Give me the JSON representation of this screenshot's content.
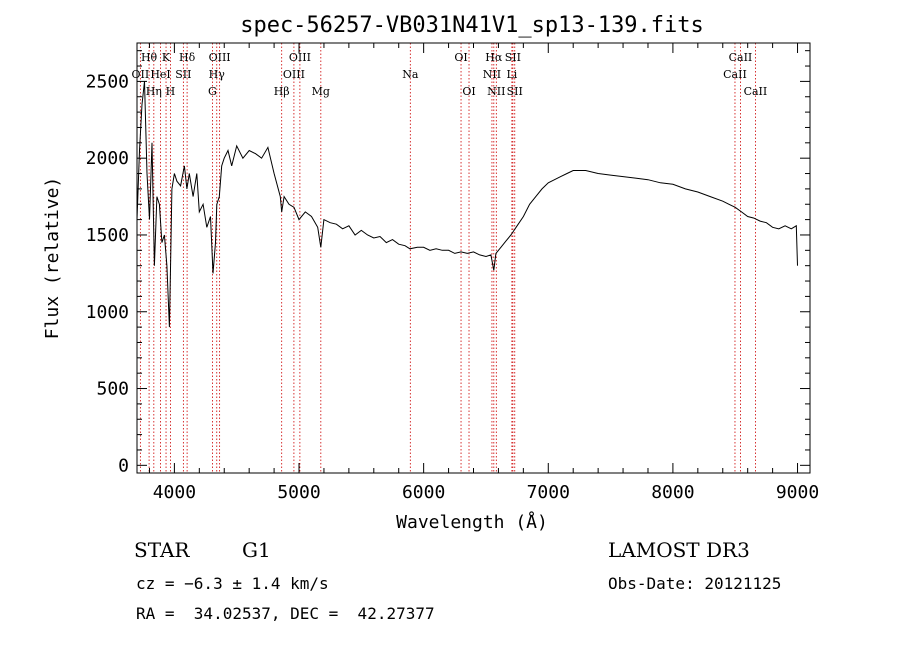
{
  "chart_data": {
    "type": "line",
    "title": "spec-56257-VB031N41V1_sp13-139.fits",
    "xlabel": "Wavelength (Å)",
    "ylabel": "Flux (relative)",
    "xlim": [
      3700,
      9100
    ],
    "ylim": [
      -50,
      2750
    ],
    "x_ticks": [
      4000,
      5000,
      6000,
      7000,
      8000,
      9000
    ],
    "y_ticks": [
      0,
      500,
      1000,
      1500,
      2000,
      2500
    ],
    "grid": false,
    "series": [
      {
        "name": "spectrum",
        "x": [
          3700,
          3720,
          3740,
          3760,
          3780,
          3800,
          3820,
          3840,
          3860,
          3880,
          3900,
          3920,
          3940,
          3960,
          3970,
          3980,
          4000,
          4020,
          4050,
          4080,
          4100,
          4120,
          4150,
          4180,
          4200,
          4230,
          4260,
          4290,
          4310,
          4330,
          4340,
          4360,
          4380,
          4400,
          4430,
          4460,
          4500,
          4550,
          4600,
          4650,
          4700,
          4750,
          4800,
          4850,
          4861,
          4880,
          4920,
          4960,
          5000,
          5050,
          5100,
          5150,
          5175,
          5200,
          5250,
          5300,
          5350,
          5400,
          5450,
          5500,
          5550,
          5600,
          5650,
          5700,
          5750,
          5800,
          5850,
          5890,
          5950,
          6000,
          6050,
          6100,
          6150,
          6200,
          6250,
          6300,
          6350,
          6400,
          6450,
          6500,
          6540,
          6563,
          6580,
          6620,
          6660,
          6700,
          6750,
          6800,
          6850,
          6900,
          6950,
          7000,
          7050,
          7100,
          7150,
          7200,
          7300,
          7400,
          7500,
          7600,
          7700,
          7800,
          7900,
          8000,
          8100,
          8200,
          8300,
          8400,
          8450,
          8500,
          8550,
          8600,
          8650,
          8700,
          8750,
          8800,
          8850,
          8900,
          8950,
          8990,
          9000
        ],
        "y": [
          1600,
          2050,
          2350,
          2500,
          1900,
          1600,
          2100,
          1300,
          1750,
          1700,
          1450,
          1500,
          1300,
          900,
          1350,
          1800,
          1900,
          1850,
          1820,
          1950,
          1800,
          1900,
          1750,
          1900,
          1650,
          1700,
          1550,
          1620,
          1250,
          1450,
          1700,
          1750,
          1950,
          2000,
          2050,
          1950,
          2080,
          2000,
          2050,
          2030,
          2000,
          2070,
          1900,
          1750,
          1650,
          1750,
          1700,
          1680,
          1600,
          1650,
          1620,
          1550,
          1420,
          1600,
          1580,
          1570,
          1540,
          1560,
          1500,
          1530,
          1500,
          1480,
          1490,
          1450,
          1470,
          1440,
          1430,
          1410,
          1420,
          1420,
          1400,
          1410,
          1400,
          1400,
          1380,
          1390,
          1380,
          1390,
          1370,
          1360,
          1370,
          1270,
          1380,
          1420,
          1460,
          1500,
          1560,
          1620,
          1700,
          1750,
          1800,
          1840,
          1860,
          1880,
          1900,
          1920,
          1920,
          1900,
          1890,
          1880,
          1870,
          1860,
          1840,
          1830,
          1800,
          1780,
          1750,
          1720,
          1700,
          1680,
          1650,
          1620,
          1610,
          1590,
          1580,
          1550,
          1540,
          1560,
          1540,
          1560,
          1300
        ]
      }
    ],
    "spectral_lines": [
      {
        "name": "Hθ",
        "wl": 3797,
        "row": 1
      },
      {
        "name": "OII",
        "wl": 3727,
        "row": 2
      },
      {
        "name": "Hη",
        "wl": 3835,
        "row": 3
      },
      {
        "name": "K",
        "wl": 3933,
        "row": 1
      },
      {
        "name": "HeI",
        "wl": 3889,
        "row": 2
      },
      {
        "name": "SII",
        "wl": 4072,
        "row": 2
      },
      {
        "name": "H",
        "wl": 3968,
        "row": 3
      },
      {
        "name": "Hδ",
        "wl": 4102,
        "row": 1
      },
      {
        "name": "OIII",
        "wl": 4363,
        "row": 1
      },
      {
        "name": "Hγ",
        "wl": 4340,
        "row": 2
      },
      {
        "name": "G",
        "wl": 4305,
        "row": 3
      },
      {
        "name": "Hβ",
        "wl": 4861,
        "row": 3
      },
      {
        "name": "OIII",
        "wl": 5007,
        "row": 1
      },
      {
        "name": "OIII",
        "wl": 4959,
        "row": 2
      },
      {
        "name": "Mg",
        "wl": 5175,
        "row": 3
      },
      {
        "name": "Na",
        "wl": 5893,
        "row": 2
      },
      {
        "name": "OI",
        "wl": 6300,
        "row": 1
      },
      {
        "name": "OI",
        "wl": 6364,
        "row": 3
      },
      {
        "name": "Hα",
        "wl": 6563,
        "row": 1
      },
      {
        "name": "NII",
        "wl": 6548,
        "row": 2
      },
      {
        "name": "NII",
        "wl": 6583,
        "row": 3
      },
      {
        "name": "SII",
        "wl": 6716,
        "row": 1
      },
      {
        "name": "Li",
        "wl": 6708,
        "row": 2
      },
      {
        "name": "SII",
        "wl": 6731,
        "row": 3
      },
      {
        "name": "CaII",
        "wl": 8542,
        "row": 1
      },
      {
        "name": "CaII",
        "wl": 8498,
        "row": 2
      },
      {
        "name": "CaII",
        "wl": 8662,
        "row": 3
      }
    ],
    "colors": {
      "spectrum": "#000000",
      "lines": "#cc0000"
    }
  },
  "footer": {
    "object_class": "STAR",
    "subclass": "G1",
    "survey": "LAMOST DR3",
    "cz": "cz = −6.3 ± 1.4 km/s",
    "obs_date": "Obs-Date: 20121125",
    "coords": "RA =  34.02537, DEC =  42.27377"
  }
}
